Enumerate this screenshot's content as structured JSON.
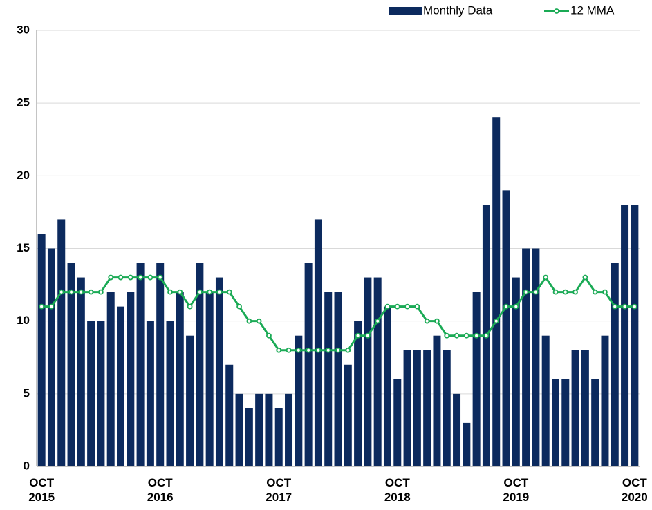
{
  "chart_data": {
    "type": "bar-line",
    "categories": [
      "OCT 2015",
      null,
      null,
      null,
      null,
      null,
      null,
      null,
      null,
      null,
      null,
      null,
      "OCT 2016",
      null,
      null,
      null,
      null,
      null,
      null,
      null,
      null,
      null,
      null,
      null,
      "OCT 2017",
      null,
      null,
      null,
      null,
      null,
      null,
      null,
      null,
      null,
      null,
      null,
      "OCT 2018",
      null,
      null,
      null,
      null,
      null,
      null,
      null,
      null,
      null,
      null,
      null,
      "OCT 2019",
      null,
      null,
      null,
      null,
      null,
      null,
      null,
      null,
      null,
      null,
      null,
      "OCT 2020"
    ],
    "series": [
      {
        "name": "Monthly Data",
        "type": "bar",
        "color": "#0c2a5e",
        "values": [
          16,
          15,
          17,
          14,
          13,
          10,
          10,
          12,
          11,
          12,
          14,
          10,
          14,
          10,
          12,
          9,
          14,
          12,
          13,
          7,
          5,
          4,
          5,
          5,
          4,
          5,
          9,
          14,
          17,
          12,
          12,
          7,
          10,
          13,
          13,
          11,
          6,
          8,
          8,
          8,
          9,
          8,
          5,
          3,
          12,
          18,
          24,
          19,
          13,
          15,
          15,
          9,
          6,
          6,
          8,
          8,
          6,
          9,
          14,
          18,
          18
        ]
      },
      {
        "name": "12 MMA",
        "type": "line",
        "color": "#1aaa55",
        "values": [
          11,
          11,
          12,
          12,
          12,
          12,
          12,
          13,
          13,
          13,
          13,
          13,
          13,
          12,
          12,
          11,
          12,
          12,
          12,
          12,
          11,
          10,
          10,
          9,
          8,
          8,
          8,
          8,
          8,
          8,
          8,
          8,
          9,
          9,
          10,
          11,
          11,
          11,
          11,
          10,
          10,
          9,
          9,
          9,
          9,
          9,
          10,
          11,
          11,
          12,
          12,
          13,
          12,
          12,
          12,
          13,
          12,
          12,
          11,
          11,
          11
        ]
      }
    ],
    "ylim": [
      0,
      30
    ],
    "yticks": [
      0,
      5,
      10,
      15,
      20,
      25,
      30
    ],
    "grid": true,
    "legend": "top-right"
  }
}
